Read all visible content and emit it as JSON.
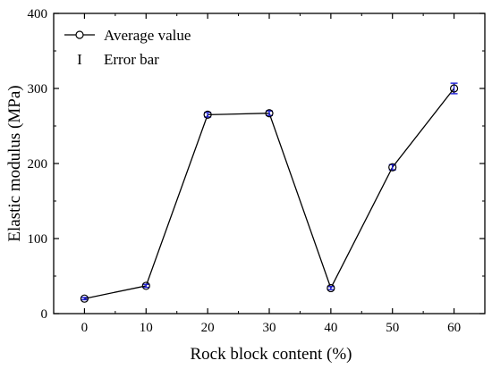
{
  "chart_data": {
    "type": "line",
    "xlabel": "Rock block content (%)",
    "ylabel": "Elastic modulus (MPa)",
    "xlim": [
      -5,
      65
    ],
    "ylim": [
      0,
      400
    ],
    "x_ticks": [
      0,
      10,
      20,
      30,
      40,
      50,
      60
    ],
    "y_ticks": [
      0,
      100,
      200,
      300,
      400
    ],
    "grid": false,
    "legend_position": "top-left",
    "series": [
      {
        "name": "Average value",
        "x": [
          0,
          10,
          20,
          30,
          40,
          50,
          60
        ],
        "y": [
          20,
          37,
          265,
          267,
          34,
          195,
          300
        ],
        "error": [
          1.5,
          2,
          3,
          3,
          2,
          3.5,
          7
        ]
      }
    ],
    "legend": {
      "average_label": "Average value",
      "error_label": "Error bar"
    },
    "colors": {
      "line": "#000000",
      "marker": "#000000",
      "error_bar": "#1f1fd6"
    }
  }
}
